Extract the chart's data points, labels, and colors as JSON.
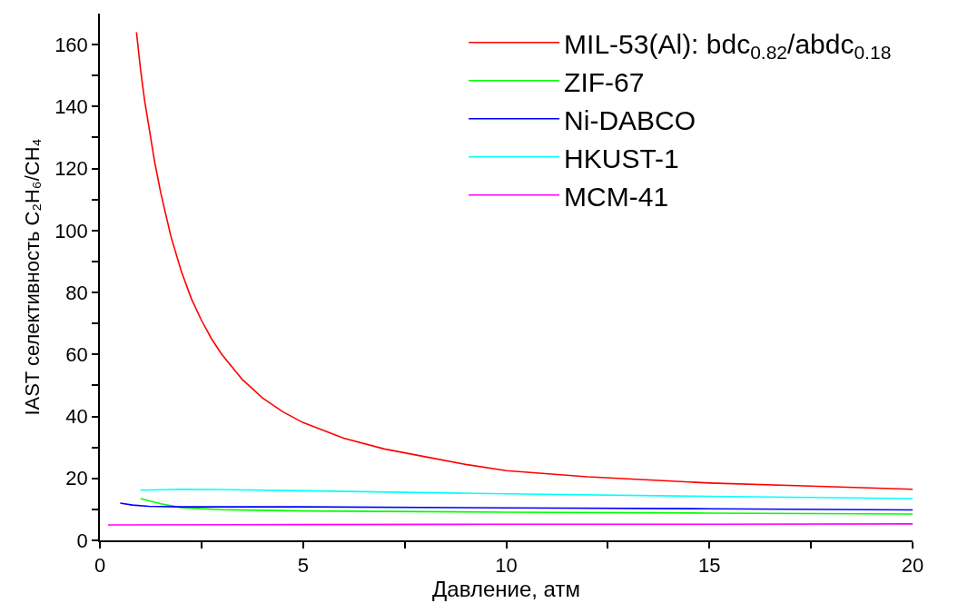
{
  "chart_data": {
    "type": "line",
    "xlabel": "Давление, атм",
    "ylabel": "IAST селективность C₂H₆/CH₄",
    "xlim": [
      0,
      20
    ],
    "ylim": [
      0,
      170
    ],
    "xticks": [
      0,
      {
        "value": 2.5,
        "label": null
      },
      5,
      {
        "value": 7.5,
        "label": null
      },
      10,
      {
        "value": 12.5,
        "label": null
      },
      15,
      {
        "value": 17.5,
        "label": null
      },
      20
    ],
    "yticks": [
      0,
      {
        "value": 10,
        "label": null
      },
      20,
      {
        "value": 30,
        "label": null
      },
      40,
      {
        "value": 50,
        "label": null
      },
      60,
      {
        "value": 70,
        "label": null
      },
      80,
      {
        "value": 90,
        "label": null
      },
      100,
      {
        "value": 110,
        "label": null
      },
      120,
      {
        "value": 130,
        "label": null
      },
      140,
      {
        "value": 150,
        "label": null
      },
      160
    ],
    "legend": "top right",
    "marker": "none",
    "line_style": "solid",
    "series": [
      {
        "name": "MIL-53(Al): bdc$_{0.82}$/abdc$_{0.18}$",
        "color": "#ff0000",
        "x": [
          0.9,
          1.0,
          1.1,
          1.2,
          1.35,
          1.5,
          1.75,
          2,
          2.25,
          2.5,
          2.75,
          3,
          3.5,
          4,
          4.5,
          5,
          6,
          7,
          8,
          9,
          10,
          12,
          15,
          17.5,
          20
        ],
        "values": [
          164,
          152,
          142,
          134,
          122,
          112,
          98,
          87,
          78,
          71,
          65,
          60,
          52,
          46,
          41.5,
          38,
          33,
          29.5,
          27,
          24.5,
          22.5,
          20.5,
          18.5,
          17.5,
          16.5
        ]
      },
      {
        "name": "ZIF-67",
        "color": "#00ff00",
        "x": [
          1,
          1.5,
          2,
          3,
          5,
          10,
          15,
          20
        ],
        "values": [
          13.5,
          11.8,
          10.6,
          9.9,
          9.5,
          9.1,
          8.8,
          8.5
        ]
      },
      {
        "name": "Ni-DABCO",
        "color": "#0000ff",
        "x": [
          0.5,
          0.8,
          1.2,
          2,
          5,
          10,
          15,
          20
        ],
        "values": [
          12,
          11.4,
          11,
          10.8,
          10.8,
          10.5,
          10.2,
          9.8
        ]
      },
      {
        "name": "HKUST-1",
        "color": "#00ffff",
        "x": [
          1,
          2,
          3,
          5,
          10,
          15,
          20
        ],
        "values": [
          16.2,
          16.5,
          16.4,
          16,
          15,
          14.2,
          13.5
        ]
      },
      {
        "name": "MCM-41",
        "color": "#ff00ff",
        "x": [
          0.2,
          5,
          10,
          15,
          20
        ],
        "values": [
          5,
          5.1,
          5.2,
          5.2,
          5.3
        ]
      }
    ]
  }
}
